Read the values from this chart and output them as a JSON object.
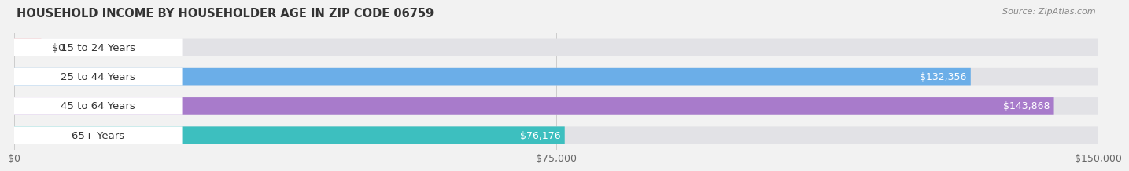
{
  "title": "HOUSEHOLD INCOME BY HOUSEHOLDER AGE IN ZIP CODE 06759",
  "source": "Source: ZipAtlas.com",
  "categories": [
    "15 to 24 Years",
    "25 to 44 Years",
    "45 to 64 Years",
    "65+ Years"
  ],
  "values": [
    0,
    132356,
    143868,
    76176
  ],
  "bar_colors": [
    "#f0a0aa",
    "#6baee8",
    "#a87bcb",
    "#3dbfbf"
  ],
  "value_labels": [
    "$0",
    "$132,356",
    "$143,868",
    "$76,176"
  ],
  "x_max": 150000,
  "x_ticks": [
    0,
    75000,
    150000
  ],
  "x_tick_labels": [
    "$0",
    "$75,000",
    "$150,000"
  ],
  "background_color": "#f2f2f2",
  "bar_background": "#e2e2e6",
  "figwidth": 14.06,
  "figheight": 2.33
}
